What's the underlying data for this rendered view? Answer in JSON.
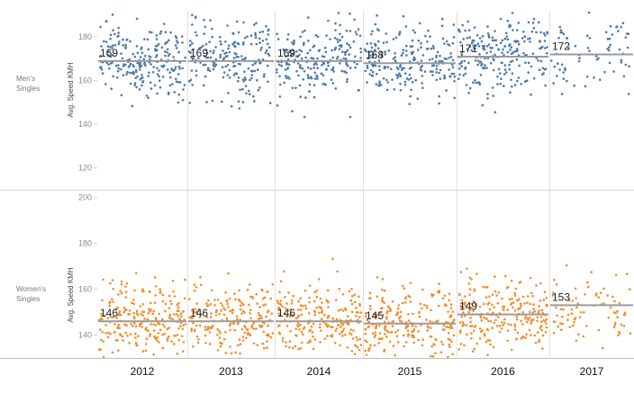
{
  "chart_data": {
    "type": "scatter",
    "columns": [
      "2012",
      "2013",
      "2014",
      "2015",
      "2016",
      "2017"
    ],
    "y_axis_title": "Avg. Speed KMH",
    "rows": [
      {
        "label": "Men's Singles",
        "color": "#4e79a7",
        "ylim": [
          110,
          192
        ],
        "ticks": [
          120,
          140,
          160,
          180
        ],
        "averages": [
          169,
          169,
          169,
          168,
          171,
          172
        ],
        "avg_labels": [
          "169",
          "169",
          "169",
          "168",
          "171",
          "172"
        ],
        "point_counts": [
          220,
          200,
          210,
          220,
          230,
          70
        ],
        "spread_sd": 9
      },
      {
        "label": "Women's Singles",
        "color": "#f28e2b",
        "ylim": [
          130,
          203
        ],
        "ticks": [
          140,
          160,
          180,
          200
        ],
        "averages": [
          146,
          146,
          146,
          145,
          149,
          153
        ],
        "avg_labels": [
          "146",
          "146",
          "146",
          "145",
          "149",
          "153"
        ],
        "point_counts": [
          230,
          210,
          230,
          230,
          230,
          80
        ],
        "spread_sd": 8
      }
    ],
    "grid": false
  }
}
